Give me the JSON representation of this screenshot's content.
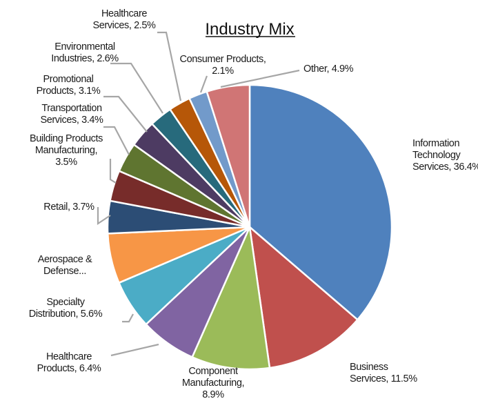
{
  "chart_data": {
    "type": "pie",
    "title": "Industry Mix",
    "legend": "none",
    "slices": [
      {
        "name": "Information Technology Services",
        "value": 36.4,
        "color": "#4f81bd",
        "label_lines": [
          "Information",
          "Technology",
          "Services, 36.4%"
        ]
      },
      {
        "name": "Business Services",
        "value": 11.5,
        "color": "#c0504d",
        "label_lines": [
          "Business",
          "Services, 11.5%"
        ]
      },
      {
        "name": "Component Manufacturing",
        "value": 8.9,
        "color": "#9bbb59",
        "label_lines": [
          "Component",
          "Manufacturing,",
          "8.9%"
        ]
      },
      {
        "name": "Healthcare Products",
        "value": 6.4,
        "color": "#8064a2",
        "label_lines": [
          "Healthcare",
          "Products, 6.4%"
        ]
      },
      {
        "name": "Specialty Distribution",
        "value": 5.6,
        "color": "#4bacc6",
        "label_lines": [
          "Specialty",
          "Distribution, 5.6%"
        ]
      },
      {
        "name": "Aerospace & Defense",
        "value": 5.7,
        "color": "#f79646",
        "label_lines": [
          "Aerospace &",
          "Defense..."
        ]
      },
      {
        "name": "Retail",
        "value": 3.7,
        "color": "#2c4d75",
        "label_lines": [
          "Retail, 3.7%"
        ]
      },
      {
        "name": "Building Products Manufacturing",
        "value": 3.5,
        "color": "#772c2a",
        "label_lines": [
          "Building Products",
          "Manufacturing,",
          "3.5%"
        ]
      },
      {
        "name": "Transportation Services",
        "value": 3.4,
        "color": "#5f7530",
        "label_lines": [
          "Transportation",
          "Services, 3.4%"
        ]
      },
      {
        "name": "Promotional Products",
        "value": 3.1,
        "color": "#4d3b62",
        "label_lines": [
          "Promotional",
          "Products, 3.1%"
        ]
      },
      {
        "name": "Environmental Industries",
        "value": 2.6,
        "color": "#276a7c",
        "label_lines": [
          "Environmental",
          "Industries, 2.6%"
        ]
      },
      {
        "name": "Healthcare Services",
        "value": 2.5,
        "color": "#b65708",
        "label_lines": [
          "Healthcare",
          "Services, 2.5%"
        ]
      },
      {
        "name": "Consumer Products",
        "value": 2.1,
        "color": "#729aca",
        "label_lines": [
          "Consumer Products,",
          "2.1%"
        ]
      },
      {
        "name": "Other",
        "value": 4.9,
        "color": "#d07575",
        "label_lines": [
          "Other, 4.9%"
        ]
      }
    ]
  }
}
